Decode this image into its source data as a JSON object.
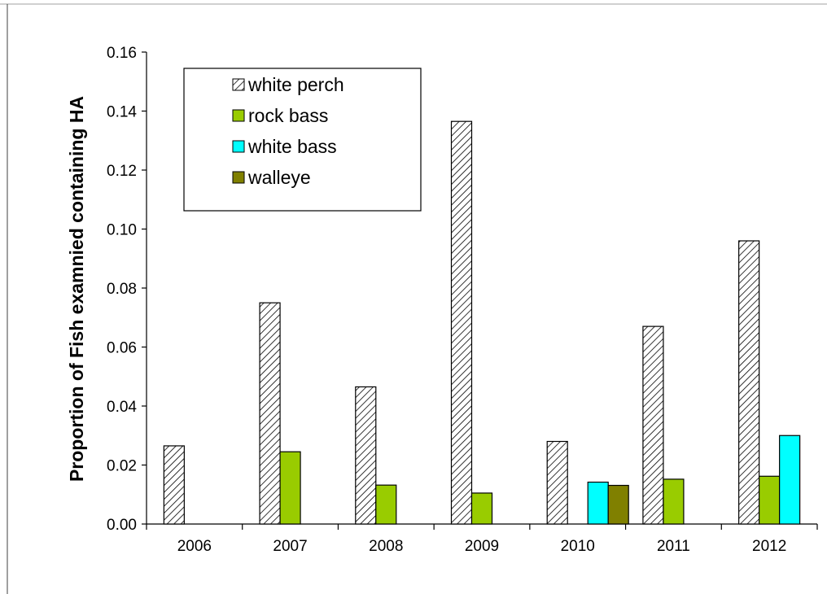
{
  "chart_data": {
    "type": "bar",
    "title": "",
    "xlabel": "",
    "ylabel": "Proportion of Fish examnied containing HA",
    "ylim": [
      0,
      0.16
    ],
    "yticks": [
      "0.00",
      "0.02",
      "0.04",
      "0.06",
      "0.08",
      "0.10",
      "0.12",
      "0.14",
      "0.16"
    ],
    "grid": false,
    "legend_position": "top-left",
    "categories": [
      "2006",
      "2007",
      "2008",
      "2009",
      "2010",
      "2011",
      "2012"
    ],
    "series": [
      {
        "name": "white perch",
        "pattern": "diagonal-hatch",
        "color": "#ffffff",
        "values": [
          0.0265,
          0.075,
          0.0465,
          0.1365,
          0.028,
          0.067,
          0.096
        ]
      },
      {
        "name": "rock bass",
        "color": "#99cc00",
        "values": [
          null,
          0.0245,
          0.0132,
          0.0105,
          null,
          0.0152,
          0.0162
        ]
      },
      {
        "name": "white bass",
        "color": "#00ffff",
        "values": [
          null,
          null,
          null,
          null,
          0.0142,
          null,
          0.03
        ]
      },
      {
        "name": "walleye",
        "color": "#808000",
        "values": [
          null,
          null,
          null,
          null,
          0.0131,
          null,
          null
        ]
      }
    ]
  }
}
